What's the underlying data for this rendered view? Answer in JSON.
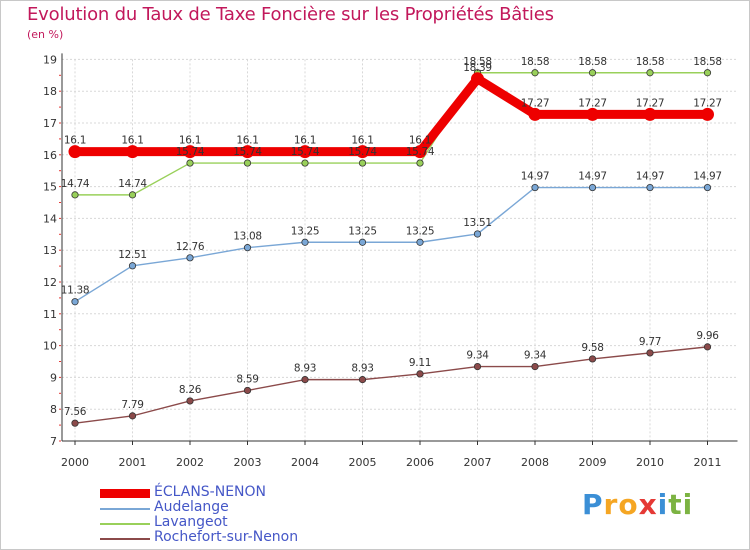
{
  "chart_data": {
    "type": "line",
    "title": "Evolution du Taux de Taxe Foncière sur les Propriétés Bâties",
    "ylabel": "(en %)",
    "xlabel": "",
    "categories": [
      "2000",
      "2001",
      "2002",
      "2003",
      "2004",
      "2005",
      "2006",
      "2007",
      "2008",
      "2009",
      "2010",
      "2011"
    ],
    "ylim": [
      7,
      19
    ],
    "yticks": [
      "7",
      "8",
      "9",
      "10",
      "11",
      "12",
      "13",
      "14",
      "15",
      "16",
      "17",
      "18",
      "19"
    ],
    "series": [
      {
        "name": "ÉCLANS-NENON",
        "color": "#ee0000",
        "values": [
          16.1,
          16.1,
          16.1,
          16.1,
          16.1,
          16.1,
          16.1,
          18.39,
          17.27,
          17.27,
          17.27,
          17.27
        ],
        "labels": [
          "16.1",
          "16.1",
          "16.1",
          "16.1",
          "16.1",
          "16.1",
          "16.1",
          "18.39",
          "17.27",
          "17.27",
          "17.27",
          "17.27"
        ]
      },
      {
        "name": "Audelange",
        "color": "#7aa7d6",
        "values": [
          11.38,
          12.51,
          12.76,
          13.08,
          13.25,
          13.25,
          13.25,
          13.51,
          14.97,
          14.97,
          14.97,
          14.97
        ],
        "labels": [
          "11.38",
          "12.51",
          "12.76",
          "13.08",
          "13.25",
          "13.25",
          "13.25",
          "13.51",
          "14.97",
          "14.97",
          "14.97",
          "14.97"
        ]
      },
      {
        "name": "Lavangeot",
        "color": "#99d05a",
        "values": [
          14.74,
          14.74,
          15.74,
          15.74,
          15.74,
          15.74,
          15.74,
          18.58,
          18.58,
          18.58,
          18.58,
          18.58
        ],
        "labels": [
          "14.74",
          "14.74",
          "15.74",
          "15.74",
          "15.74",
          "15.74",
          "15.74",
          "18.58",
          "18.58",
          "18.58",
          "18.58",
          "18.58"
        ]
      },
      {
        "name": "Rochefort-sur-Nenon",
        "color": "#8b4a4a",
        "values": [
          7.56,
          7.79,
          8.26,
          8.59,
          8.93,
          8.93,
          9.11,
          9.34,
          9.34,
          9.58,
          9.77,
          9.96
        ],
        "labels": [
          "7.56",
          "7.79",
          "8.26",
          "8.59",
          "8.93",
          "8.93",
          "9.11",
          "9.34",
          "9.34",
          "9.58",
          "9.77",
          "9.96"
        ]
      }
    ]
  },
  "logo": {
    "letters": [
      "P",
      "r",
      "o",
      "x",
      "i",
      "t",
      "i"
    ],
    "colors": [
      "#3b8fd6",
      "#f5a623",
      "#f5a623",
      "#e53935",
      "#3b8fd6",
      "#7cb342",
      "#7cb342"
    ]
  }
}
